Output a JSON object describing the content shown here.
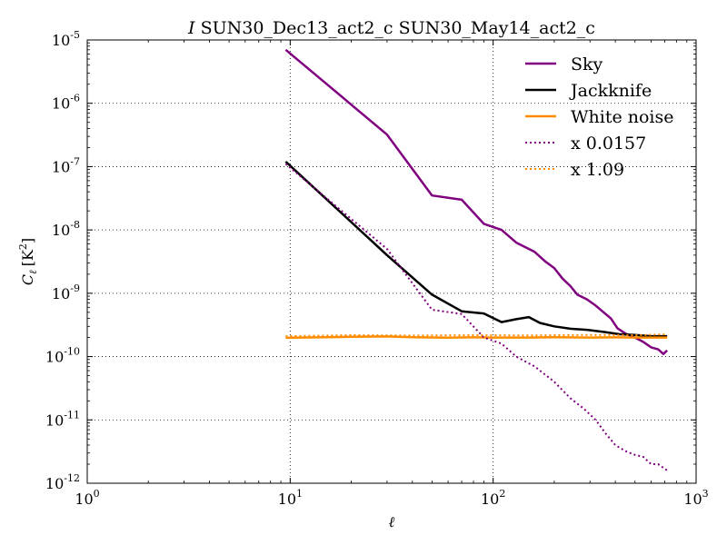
{
  "chart_data": {
    "type": "line",
    "title_italic": "I",
    "title_rest": "SUN30_Dec13_act2_c SUN30_May14_act2_c",
    "xlabel": "ℓ",
    "ylabel_main": "C",
    "ylabel_sub": "ℓ",
    "ylabel_unit_open": "[K",
    "ylabel_unit_sup": "2",
    "ylabel_unit_close": "]",
    "xscale": "log",
    "yscale": "log",
    "xlim": [
      1,
      1000
    ],
    "ylim": [
      1e-12,
      1e-05
    ],
    "grid": true,
    "legend_position": "top-right",
    "x_ticks": [
      {
        "base": "10",
        "exp": "0",
        "value": 1
      },
      {
        "base": "10",
        "exp": "1",
        "value": 10
      },
      {
        "base": "10",
        "exp": "2",
        "value": 100
      },
      {
        "base": "10",
        "exp": "3",
        "value": 1000
      }
    ],
    "y_ticks": [
      {
        "base": "10",
        "exp": "-5",
        "value": 1e-05
      },
      {
        "base": "10",
        "exp": "-6",
        "value": 1e-06
      },
      {
        "base": "10",
        "exp": "-7",
        "value": 1e-07
      },
      {
        "base": "10",
        "exp": "-8",
        "value": 1e-08
      },
      {
        "base": "10",
        "exp": "-9",
        "value": 1e-09
      },
      {
        "base": "10",
        "exp": "-10",
        "value": 1e-10
      },
      {
        "base": "10",
        "exp": "-11",
        "value": 1e-11
      },
      {
        "base": "10",
        "exp": "-12",
        "value": 1e-12
      }
    ],
    "series": [
      {
        "name": "Sky",
        "color": "#800080",
        "style": "solid",
        "points": [
          [
            9.5,
            7e-06
          ],
          [
            30,
            3.2e-07
          ],
          [
            50,
            3.5e-08
          ],
          [
            70,
            3e-08
          ],
          [
            90,
            1.25e-08
          ],
          [
            110,
            1e-08
          ],
          [
            130,
            6.3e-09
          ],
          [
            160,
            4.5e-09
          ],
          [
            180,
            3.2e-09
          ],
          [
            200,
            2.5e-09
          ],
          [
            220,
            1.7e-09
          ],
          [
            240,
            1.3e-09
          ],
          [
            260,
            9.5e-10
          ],
          [
            290,
            8e-10
          ],
          [
            320,
            6.4e-10
          ],
          [
            350,
            5e-10
          ],
          [
            380,
            4e-10
          ],
          [
            410,
            2.8e-10
          ],
          [
            450,
            2.3e-10
          ],
          [
            500,
            2e-10
          ],
          [
            550,
            1.7e-10
          ],
          [
            600,
            1.4e-10
          ],
          [
            650,
            1.3e-10
          ],
          [
            690,
            1.1e-10
          ],
          [
            720,
            1.25e-10
          ]
        ]
      },
      {
        "name": "Jackknife",
        "color": "#000000",
        "style": "solid",
        "points": [
          [
            9.5,
            1.2e-07
          ],
          [
            30,
            4e-09
          ],
          [
            50,
            9.5e-10
          ],
          [
            70,
            5.2e-10
          ],
          [
            90,
            4.8e-10
          ],
          [
            110,
            3.5e-10
          ],
          [
            130,
            3.9e-10
          ],
          [
            150,
            4.2e-10
          ],
          [
            170,
            3.4e-10
          ],
          [
            200,
            3e-10
          ],
          [
            240,
            2.75e-10
          ],
          [
            290,
            2.65e-10
          ],
          [
            350,
            2.45e-10
          ],
          [
            420,
            2.25e-10
          ],
          [
            500,
            2.2e-10
          ],
          [
            600,
            2.1e-10
          ],
          [
            720,
            2.1e-10
          ]
        ]
      },
      {
        "name": "White noise",
        "color": "#ff8c00",
        "style": "solid",
        "points": [
          [
            9.5,
            1.98e-10
          ],
          [
            15,
            2.02e-10
          ],
          [
            20,
            2.05e-10
          ],
          [
            30,
            2.08e-10
          ],
          [
            40,
            2.02e-10
          ],
          [
            60,
            1.99e-10
          ],
          [
            80,
            2.01e-10
          ],
          [
            100,
            2e-10
          ],
          [
            150,
            2e-10
          ],
          [
            200,
            2.02e-10
          ],
          [
            300,
            2e-10
          ],
          [
            400,
            2.01e-10
          ],
          [
            500,
            2e-10
          ],
          [
            600,
            2e-10
          ],
          [
            720,
            2e-10
          ]
        ]
      },
      {
        "name": "x 0.0157",
        "color": "#800080",
        "style": "dotted",
        "points": [
          [
            9.5,
            1.1e-07
          ],
          [
            30,
            5e-09
          ],
          [
            50,
            5.5e-10
          ],
          [
            70,
            4.7e-10
          ],
          [
            90,
            2e-10
          ],
          [
            110,
            1.6e-10
          ],
          [
            130,
            1e-10
          ],
          [
            160,
            7e-11
          ],
          [
            200,
            4e-11
          ],
          [
            240,
            2.2e-11
          ],
          [
            280,
            1.5e-11
          ],
          [
            320,
            1e-11
          ],
          [
            360,
            6e-12
          ],
          [
            400,
            4e-12
          ],
          [
            450,
            3.2e-12
          ],
          [
            500,
            2.8e-12
          ],
          [
            550,
            2.6e-12
          ],
          [
            600,
            2e-12
          ],
          [
            650,
            2e-12
          ],
          [
            720,
            1.6e-12
          ]
        ]
      },
      {
        "name": "x 1.09",
        "color": "#ff8c00",
        "style": "dotted",
        "points": [
          [
            9.5,
            2.1e-10
          ],
          [
            20,
            2.18e-10
          ],
          [
            40,
            2.15e-10
          ],
          [
            80,
            2.18e-10
          ],
          [
            150,
            2.16e-10
          ],
          [
            300,
            2.2e-10
          ],
          [
            500,
            2.18e-10
          ],
          [
            720,
            2.25e-10
          ]
        ]
      }
    ]
  }
}
